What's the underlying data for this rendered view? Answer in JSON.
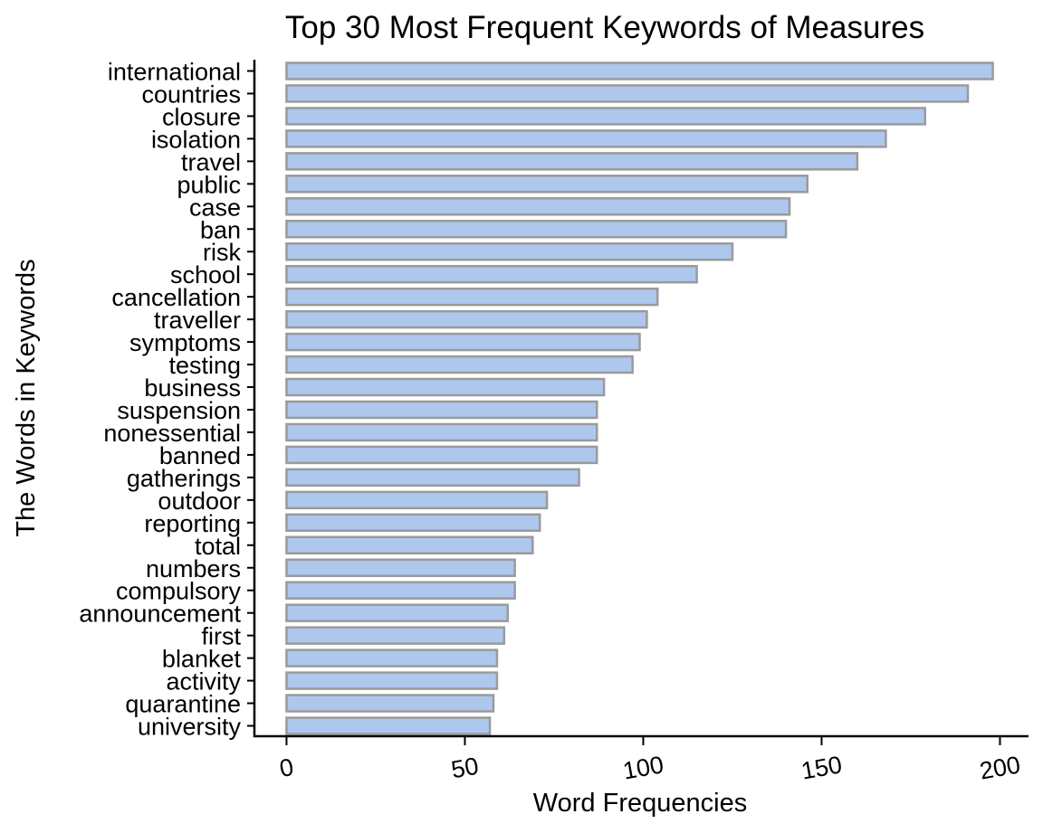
{
  "chart_data": {
    "type": "bar",
    "orientation": "horizontal",
    "title": "Top 30 Most Frequent Keywords of Measures",
    "xlabel": "Word Frequencies",
    "ylabel": "The Words in Keywords",
    "xlim": [
      -9,
      208
    ],
    "xticks": [
      0,
      50,
      100,
      150,
      200
    ],
    "grid": false,
    "legend": "none",
    "bar_fill": "#aec7ed",
    "bar_stroke": "#9a9a9a",
    "categories": [
      "international",
      "countries",
      "closure",
      "isolation",
      "travel",
      "public",
      "case",
      "ban",
      "risk",
      "school",
      "cancellation",
      "traveller",
      "symptoms",
      "testing",
      "business",
      "suspension",
      "nonessential",
      "banned",
      "gatherings",
      "outdoor",
      "reporting",
      "total",
      "numbers",
      "compulsory",
      "announcement",
      "first",
      "blanket",
      "activity",
      "quarantine",
      "university"
    ],
    "values": [
      198,
      191,
      179,
      168,
      160,
      146,
      141,
      140,
      125,
      115,
      104,
      101,
      99,
      97,
      89,
      87,
      87,
      87,
      82,
      73,
      71,
      69,
      64,
      64,
      62,
      61,
      59,
      59,
      58,
      57
    ]
  }
}
